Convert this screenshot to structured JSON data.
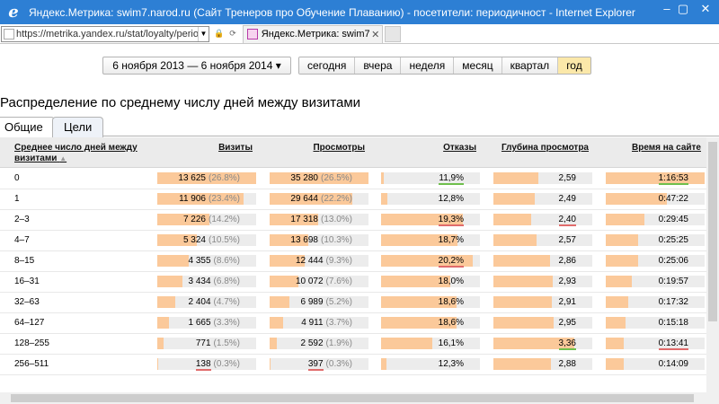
{
  "window": {
    "title": "Яндекс.Метрика: swim7.narod.ru (Сайт Тренеров про Обучение Плаванию) - посетители: периодичност - Internet Explorer",
    "url": "https://metrika.yandex.ru/stat/loyalty/period",
    "tab_title": "Яндекс.Метрика: swim7.n..."
  },
  "date_range": "6 ноября 2013 — 6 ноября 2014 ▾",
  "periods": [
    "сегодня",
    "вчера",
    "неделя",
    "месяц",
    "квартал",
    "год"
  ],
  "active_period": "год",
  "section_title": "Распределение по среднему числу дней между визитами",
  "tabs": [
    "Общие",
    "Цели"
  ],
  "columns": {
    "c0": "Среднее число дней между визитами",
    "c1": "Визиты",
    "c2": "Просмотры",
    "c3": "Отказы",
    "c4": "Глубина просмотра",
    "c5": "Время на сайте"
  },
  "colors": {
    "bar": "#fbc99a",
    "bar_bg": "#ececec",
    "good": "#6fbf4d",
    "bad": "#e06b6b",
    "active_period": "#fbe8a9"
  },
  "rows": [
    {
      "label": "0",
      "visits": "13 625",
      "visits_pct": "(26.8%)",
      "visits_frac": 1.0,
      "views": "35 280",
      "views_pct": "(26.5%)",
      "views_frac": 1.0,
      "bounce": "11,9%",
      "bounce_frac": 0.03,
      "depth": "2,59",
      "depth_frac": 0.45,
      "time": "1:16:53",
      "time_frac": 1.0
    },
    {
      "label": "1",
      "visits": "11 906",
      "visits_pct": "(23.4%)",
      "visits_frac": 0.87,
      "views": "29 644",
      "views_pct": "(22.2%)",
      "views_frac": 0.84,
      "bounce": "12,8%",
      "bounce_frac": 0.06,
      "depth": "2,49",
      "depth_frac": 0.42,
      "time": "0:47:22",
      "time_frac": 0.62
    },
    {
      "label": "2–3",
      "visits": "7 226",
      "visits_pct": "(14.2%)",
      "visits_frac": 0.53,
      "views": "17 318",
      "views_pct": "(13.0%)",
      "views_frac": 0.49,
      "bounce": "19,3%",
      "bounce_frac": 0.83,
      "depth": "2,40",
      "depth_frac": 0.38,
      "time": "0:29:45",
      "time_frac": 0.39
    },
    {
      "label": "4–7",
      "visits": "5 324",
      "visits_pct": "(10.5%)",
      "visits_frac": 0.4,
      "views": "13 698",
      "views_pct": "(10.3%)",
      "views_frac": 0.39,
      "bounce": "18,7%",
      "bounce_frac": 0.77,
      "depth": "2,57",
      "depth_frac": 0.44,
      "time": "0:25:25",
      "time_frac": 0.33
    },
    {
      "label": "8–15",
      "visits": "4 355",
      "visits_pct": "(8.6%)",
      "visits_frac": 0.32,
      "views": "12 444",
      "views_pct": "(9.3%)",
      "views_frac": 0.35,
      "bounce": "20,2%",
      "bounce_frac": 0.93,
      "depth": "2,86",
      "depth_frac": 0.57,
      "time": "0:25:06",
      "time_frac": 0.33
    },
    {
      "label": "16–31",
      "visits": "3 434",
      "visits_pct": "(6.8%)",
      "visits_frac": 0.25,
      "views": "10 072",
      "views_pct": "(7.6%)",
      "views_frac": 0.29,
      "bounce": "18,0%",
      "bounce_frac": 0.7,
      "depth": "2,93",
      "depth_frac": 0.6,
      "time": "0:19:57",
      "time_frac": 0.26
    },
    {
      "label": "32–63",
      "visits": "2 404",
      "visits_pct": "(4.7%)",
      "visits_frac": 0.18,
      "views": "6 989",
      "views_pct": "(5.2%)",
      "views_frac": 0.2,
      "bounce": "18,6%",
      "bounce_frac": 0.76,
      "depth": "2,91",
      "depth_frac": 0.59,
      "time": "0:17:32",
      "time_frac": 0.23
    },
    {
      "label": "64–127",
      "visits": "1 665",
      "visits_pct": "(3.3%)",
      "visits_frac": 0.12,
      "views": "4 911",
      "views_pct": "(3.7%)",
      "views_frac": 0.14,
      "bounce": "18,6%",
      "bounce_frac": 0.76,
      "depth": "2,95",
      "depth_frac": 0.61,
      "time": "0:15:18",
      "time_frac": 0.2
    },
    {
      "label": "128–255",
      "visits": "771",
      "visits_pct": "(1.5%)",
      "visits_frac": 0.06,
      "views": "2 592",
      "views_pct": "(1.9%)",
      "views_frac": 0.07,
      "bounce": "16,1%",
      "bounce_frac": 0.52,
      "depth": "3,36",
      "depth_frac": 0.82,
      "time": "0:13:41",
      "time_frac": 0.18
    },
    {
      "label": "256–511",
      "visits": "138",
      "visits_pct": "(0.3%)",
      "visits_frac": 0.01,
      "views": "397",
      "views_pct": "(0.3%)",
      "views_frac": 0.01,
      "bounce": "12,3%",
      "bounce_frac": 0.05,
      "depth": "2,88",
      "depth_frac": 0.58,
      "time": "0:14:09",
      "time_frac": 0.18
    }
  ],
  "row_marks": [
    {
      "visits": "",
      "views": "",
      "bounce": "green",
      "depth": "",
      "time": "green"
    },
    {
      "visits": "",
      "views": "",
      "bounce": "",
      "depth": "",
      "time": ""
    },
    {
      "visits": "",
      "views": "",
      "bounce": "red",
      "depth": "red",
      "time": ""
    },
    {
      "visits": "",
      "views": "",
      "bounce": "",
      "depth": "",
      "time": ""
    },
    {
      "visits": "",
      "views": "",
      "bounce": "red",
      "depth": "",
      "time": ""
    },
    {
      "visits": "",
      "views": "",
      "bounce": "",
      "depth": "",
      "time": ""
    },
    {
      "visits": "",
      "views": "",
      "bounce": "",
      "depth": "",
      "time": ""
    },
    {
      "visits": "",
      "views": "",
      "bounce": "",
      "depth": "",
      "time": ""
    },
    {
      "visits": "",
      "views": "",
      "bounce": "",
      "depth": "green",
      "time": "red"
    },
    {
      "visits": "red",
      "views": "red",
      "bounce": "",
      "depth": "",
      "time": ""
    }
  ]
}
